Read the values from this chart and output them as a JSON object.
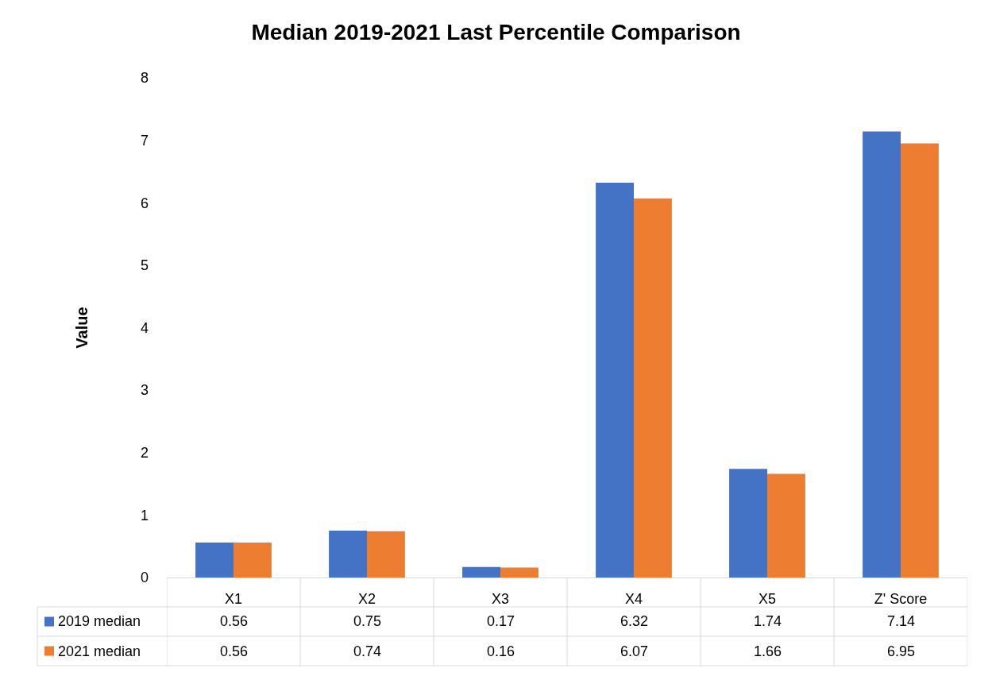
{
  "chart_data": {
    "type": "bar",
    "title": "Median 2019-2021 Last Percentile Comparison",
    "ylabel": "Value",
    "categories": [
      "X1",
      "X2",
      "X3",
      "X4",
      "X5",
      "Z' Score"
    ],
    "series": [
      {
        "name": "2019 median",
        "color": "#4472c4",
        "values": [
          0.56,
          0.75,
          0.17,
          6.32,
          1.74,
          7.14
        ]
      },
      {
        "name": "2021 median",
        "color": "#ed7d31",
        "values": [
          0.56,
          0.74,
          0.16,
          6.07,
          1.66,
          6.95
        ]
      }
    ],
    "ylim": [
      0,
      8
    ],
    "yticks": [
      0,
      1,
      2,
      3,
      4,
      5,
      6,
      7,
      8
    ],
    "grid": false,
    "legend": "bottom left",
    "data_labels": true
  }
}
